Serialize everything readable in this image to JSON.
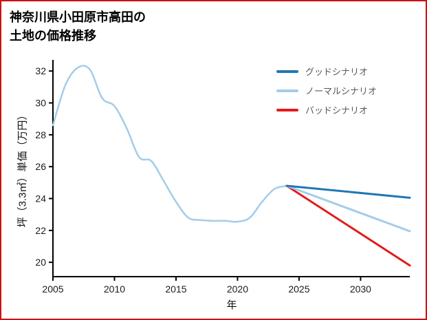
{
  "frame": {
    "border_color": "#cc1111",
    "background": "#ffffff"
  },
  "title": {
    "line1": "神奈川県小田原市高田の",
    "line2": "土地の価格推移"
  },
  "legend": {
    "items": [
      {
        "label": "グッドシナリオ",
        "color": "#1f77b4"
      },
      {
        "label": "ノーマルシナリオ",
        "color": "#a3cce9"
      },
      {
        "label": "バッドシナリオ",
        "color": "#e31a1c"
      }
    ]
  },
  "chart_data": {
    "type": "line",
    "title": "神奈川県小田原市高田の土地の価格推移",
    "xlabel": "年",
    "ylabel": "坪（3.3㎡）単価（万円）",
    "xlim": [
      2005,
      2034
    ],
    "ylim": [
      19.1,
      32.7
    ],
    "x_ticks": [
      2005,
      2010,
      2015,
      2020,
      2025,
      2030
    ],
    "y_ticks": [
      20,
      22,
      24,
      26,
      28,
      30,
      32
    ],
    "grid": false,
    "legend_position": "upper-right",
    "axis_color": "#000000",
    "tick_label_color": "#1a1a1a",
    "series": [
      {
        "name": "historical-price",
        "color": "#a3cce9",
        "width": 2.5,
        "x": [
          2005,
          2006,
          2007,
          2008,
          2009,
          2010,
          2011,
          2012,
          2013,
          2014,
          2015,
          2016,
          2017,
          2018,
          2019,
          2020,
          2021,
          2022,
          2023,
          2024
        ],
        "y": [
          28.6,
          31.1,
          32.2,
          32.1,
          30.3,
          29.8,
          28.4,
          26.6,
          26.35,
          25.1,
          23.8,
          22.8,
          22.65,
          22.6,
          22.6,
          22.55,
          22.8,
          23.8,
          24.6,
          24.8
        ]
      },
      {
        "name": "bad-scenario",
        "color": "#e31a1c",
        "width": 3,
        "x": [
          2024,
          2034
        ],
        "y": [
          24.8,
          19.8
        ]
      },
      {
        "name": "normal-scenario",
        "color": "#a3cce9",
        "width": 3,
        "x": [
          2024,
          2034
        ],
        "y": [
          24.8,
          21.95
        ]
      },
      {
        "name": "good-scenario",
        "color": "#1f77b4",
        "width": 3,
        "x": [
          2024,
          2034
        ],
        "y": [
          24.8,
          24.05
        ]
      }
    ]
  }
}
